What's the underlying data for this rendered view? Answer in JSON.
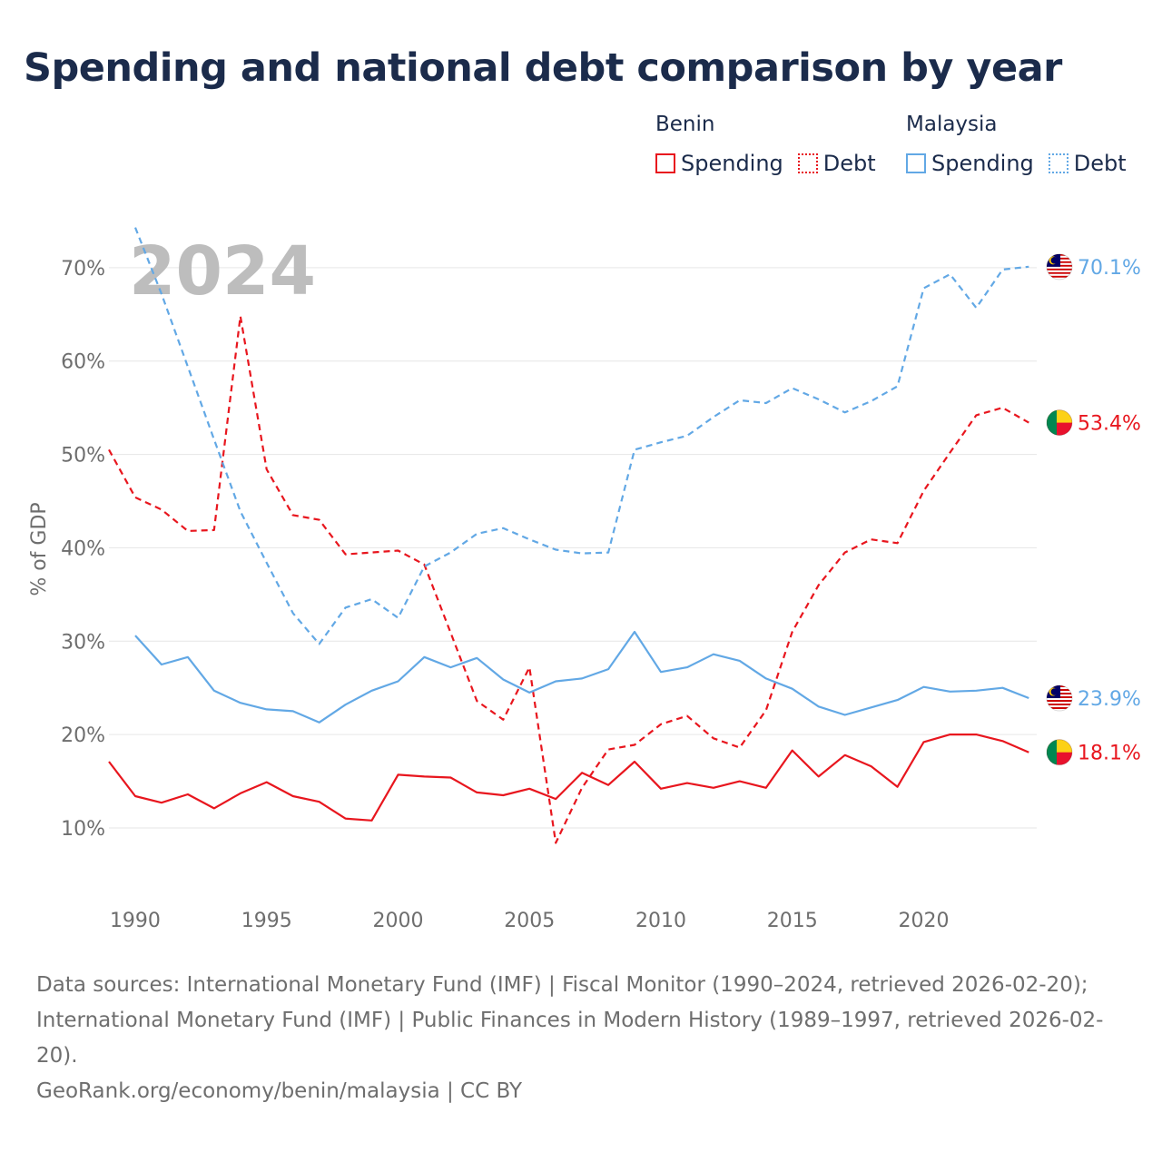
{
  "title": "Spending and national debt comparison by year",
  "legend": {
    "groups": [
      {
        "name": "Benin",
        "color": "#e8161e",
        "items": [
          {
            "label": "Spending",
            "style": "solid"
          },
          {
            "label": "Debt",
            "style": "dotted"
          }
        ]
      },
      {
        "name": "Malaysia",
        "color": "#62a8e5",
        "items": [
          {
            "label": "Spending",
            "style": "solid"
          },
          {
            "label": "Debt",
            "style": "dotted"
          }
        ]
      }
    ]
  },
  "chart_data": {
    "type": "line",
    "watermark_year": "2024",
    "ylabel": "% of GDP",
    "ylim": [
      3,
      73
    ],
    "xlim": [
      1989,
      2024.3
    ],
    "yticks": [
      10,
      20,
      30,
      40,
      50,
      60,
      70
    ],
    "ytick_labels": [
      "10%",
      "20%",
      "30%",
      "40%",
      "50%",
      "60%",
      "70%"
    ],
    "xticks": [
      1990,
      1995,
      2000,
      2005,
      2010,
      2015,
      2020
    ],
    "xtick_labels": [
      "1990",
      "1995",
      "2000",
      "2005",
      "2010",
      "2015",
      "2020"
    ],
    "grid": true,
    "series": [
      {
        "name": "Benin Spending",
        "country": "Benin",
        "metric": "Spending",
        "color": "#e8161e",
        "dash": "solid",
        "end_label": "18.1%",
        "points": [
          [
            1989,
            17.1
          ],
          [
            1990,
            13.4
          ],
          [
            1991,
            12.7
          ],
          [
            1992,
            13.6
          ],
          [
            1993,
            12.1
          ],
          [
            1994,
            13.7
          ],
          [
            1995,
            14.9
          ],
          [
            1996,
            13.4
          ],
          [
            1997,
            12.8
          ],
          [
            1998,
            11.0
          ],
          [
            1999,
            10.8
          ],
          [
            2000,
            15.7
          ],
          [
            2001,
            15.5
          ],
          [
            2002,
            15.4
          ],
          [
            2003,
            13.8
          ],
          [
            2004,
            13.5
          ],
          [
            2005,
            14.2
          ],
          [
            2006,
            13.1
          ],
          [
            2007,
            15.9
          ],
          [
            2008,
            14.6
          ],
          [
            2009,
            17.1
          ],
          [
            2010,
            14.2
          ],
          [
            2011,
            14.8
          ],
          [
            2012,
            14.3
          ],
          [
            2013,
            15.0
          ],
          [
            2014,
            14.3
          ],
          [
            2015,
            18.3
          ],
          [
            2016,
            15.5
          ],
          [
            2017,
            17.8
          ],
          [
            2018,
            16.6
          ],
          [
            2019,
            14.4
          ],
          [
            2020,
            19.2
          ],
          [
            2021,
            20.0
          ],
          [
            2022,
            20.0
          ],
          [
            2023,
            19.3
          ],
          [
            2024,
            18.1
          ]
        ]
      },
      {
        "name": "Benin Debt",
        "country": "Benin",
        "metric": "Debt",
        "color": "#e8161e",
        "dash": "dashed",
        "end_label": "53.4%",
        "points": [
          [
            1989,
            50.5
          ],
          [
            1990,
            45.4
          ],
          [
            1991,
            44.1
          ],
          [
            1992,
            41.8
          ],
          [
            1993,
            41.9
          ],
          [
            1994,
            64.8
          ],
          [
            1995,
            48.4
          ],
          [
            1996,
            43.5
          ],
          [
            1997,
            43.0
          ],
          [
            1998,
            39.3
          ],
          [
            1999,
            39.5
          ],
          [
            2000,
            39.7
          ],
          [
            2001,
            38.2
          ],
          [
            2002,
            30.9
          ],
          [
            2003,
            23.6
          ],
          [
            2004,
            21.6
          ],
          [
            2005,
            27.2
          ],
          [
            2006,
            8.4
          ],
          [
            2007,
            14.3
          ],
          [
            2008,
            18.4
          ],
          [
            2009,
            18.9
          ],
          [
            2010,
            21.1
          ],
          [
            2011,
            22.0
          ],
          [
            2012,
            19.6
          ],
          [
            2013,
            18.6
          ],
          [
            2014,
            22.6
          ],
          [
            2015,
            31.0
          ],
          [
            2016,
            36.0
          ],
          [
            2017,
            39.5
          ],
          [
            2018,
            40.9
          ],
          [
            2019,
            40.5
          ],
          [
            2020,
            46.1
          ],
          [
            2021,
            50.2
          ],
          [
            2022,
            54.2
          ],
          [
            2023,
            55.0
          ],
          [
            2024,
            53.4
          ]
        ]
      },
      {
        "name": "Malaysia Spending",
        "country": "Malaysia",
        "metric": "Spending",
        "color": "#62a8e5",
        "dash": "solid",
        "end_label": "23.9%",
        "points": [
          [
            1990,
            30.6
          ],
          [
            1991,
            27.5
          ],
          [
            1992,
            28.3
          ],
          [
            1993,
            24.7
          ],
          [
            1994,
            23.4
          ],
          [
            1995,
            22.7
          ],
          [
            1996,
            22.5
          ],
          [
            1997,
            21.3
          ],
          [
            1998,
            23.2
          ],
          [
            1999,
            24.7
          ],
          [
            2000,
            25.7
          ],
          [
            2001,
            28.3
          ],
          [
            2002,
            27.2
          ],
          [
            2003,
            28.2
          ],
          [
            2004,
            25.9
          ],
          [
            2005,
            24.5
          ],
          [
            2006,
            25.7
          ],
          [
            2007,
            26.0
          ],
          [
            2008,
            27.0
          ],
          [
            2009,
            31.0
          ],
          [
            2010,
            26.7
          ],
          [
            2011,
            27.2
          ],
          [
            2012,
            28.6
          ],
          [
            2013,
            27.9
          ],
          [
            2014,
            26.0
          ],
          [
            2015,
            24.9
          ],
          [
            2016,
            23.0
          ],
          [
            2017,
            22.1
          ],
          [
            2018,
            22.9
          ],
          [
            2019,
            23.7
          ],
          [
            2020,
            25.1
          ],
          [
            2021,
            24.6
          ],
          [
            2022,
            24.7
          ],
          [
            2023,
            25.0
          ],
          [
            2024,
            23.9
          ]
        ]
      },
      {
        "name": "Malaysia Debt",
        "country": "Malaysia",
        "metric": "Debt",
        "color": "#62a8e5",
        "dash": "dashed",
        "end_label": "70.1%",
        "points": [
          [
            1990,
            74.3
          ],
          [
            1991,
            67.2
          ],
          [
            1992,
            59.4
          ],
          [
            1993,
            51.6
          ],
          [
            1994,
            43.9
          ],
          [
            1995,
            38.4
          ],
          [
            1996,
            33.0
          ],
          [
            1997,
            29.7
          ],
          [
            1998,
            33.6
          ],
          [
            1999,
            34.5
          ],
          [
            2000,
            32.5
          ],
          [
            2001,
            38.0
          ],
          [
            2002,
            39.5
          ],
          [
            2003,
            41.5
          ],
          [
            2004,
            42.1
          ],
          [
            2005,
            40.9
          ],
          [
            2006,
            39.8
          ],
          [
            2007,
            39.4
          ],
          [
            2008,
            39.5
          ],
          [
            2009,
            50.5
          ],
          [
            2010,
            51.3
          ],
          [
            2011,
            52.0
          ],
          [
            2012,
            54.0
          ],
          [
            2013,
            55.8
          ],
          [
            2014,
            55.5
          ],
          [
            2015,
            57.1
          ],
          [
            2016,
            55.9
          ],
          [
            2017,
            54.5
          ],
          [
            2018,
            55.7
          ],
          [
            2019,
            57.3
          ],
          [
            2020,
            67.8
          ],
          [
            2021,
            69.3
          ],
          [
            2022,
            65.7
          ],
          [
            2023,
            69.8
          ],
          [
            2024,
            70.1
          ]
        ]
      }
    ]
  },
  "footer": {
    "sources": "Data sources: International Monetary Fund (IMF) | Fiscal Monitor (1990–2024, retrieved 2026-02-20); International Monetary Fund (IMF) | Public Finances in Modern History (1989–1997, retrieved 2026-02-20).",
    "credit": "GeoRank.org/economy/benin/malaysia | CC BY"
  }
}
